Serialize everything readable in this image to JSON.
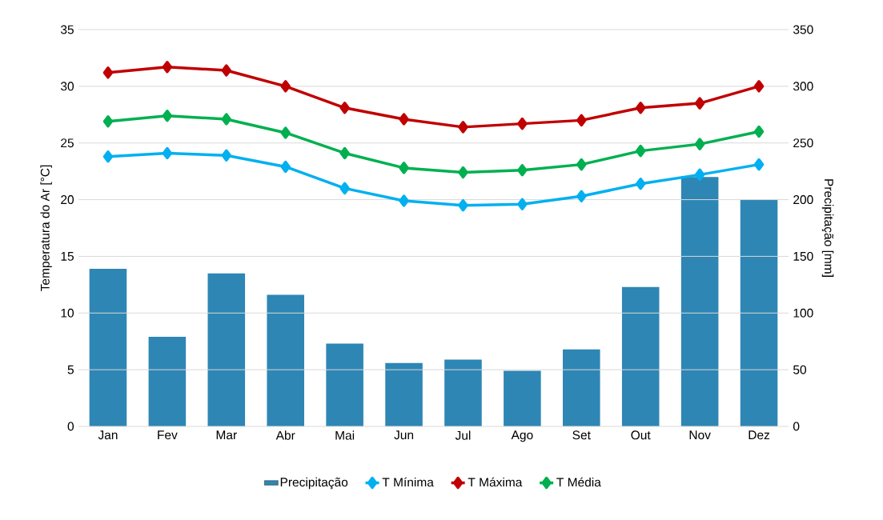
{
  "chart_data": {
    "type": "line",
    "categories": [
      "Jan",
      "Fev",
      "Mar",
      "Abr",
      "Mai",
      "Jun",
      "Jul",
      "Ago",
      "Set",
      "Out",
      "Nov",
      "Dez"
    ],
    "ylabel": "Temperatura do Ar [°C]",
    "y2label": "Precipitação [mm]",
    "ylim": [
      0,
      35
    ],
    "yticks": [
      0,
      5,
      10,
      15,
      20,
      25,
      30,
      35
    ],
    "y2lim": [
      0,
      350
    ],
    "y2ticks": [
      0,
      50,
      100,
      150,
      200,
      250,
      300,
      350
    ],
    "grid": "y",
    "legend": "bottom",
    "marker": "diamond",
    "series": [
      {
        "name": "Precipitação",
        "type": "bar",
        "axis": "y2",
        "color": "#2e86b4",
        "values": [
          139,
          79,
          135,
          116,
          73,
          56,
          59,
          49,
          68,
          123,
          220,
          200
        ]
      },
      {
        "name": "T Mínima",
        "color": "#00b0f0",
        "values": [
          23.8,
          24.1,
          23.9,
          22.9,
          21.0,
          19.9,
          19.5,
          19.6,
          20.3,
          21.4,
          22.2,
          23.1
        ]
      },
      {
        "name": "T Máxima",
        "color": "#c00000",
        "values": [
          31.2,
          31.7,
          31.4,
          30.0,
          28.1,
          27.1,
          26.4,
          26.7,
          27.0,
          28.1,
          28.5,
          30.0
        ]
      },
      {
        "name": "T Média",
        "color": "#00b050",
        "values": [
          26.9,
          27.4,
          27.1,
          25.9,
          24.1,
          22.8,
          22.4,
          22.6,
          23.1,
          24.3,
          24.9,
          26.0
        ]
      }
    ]
  }
}
